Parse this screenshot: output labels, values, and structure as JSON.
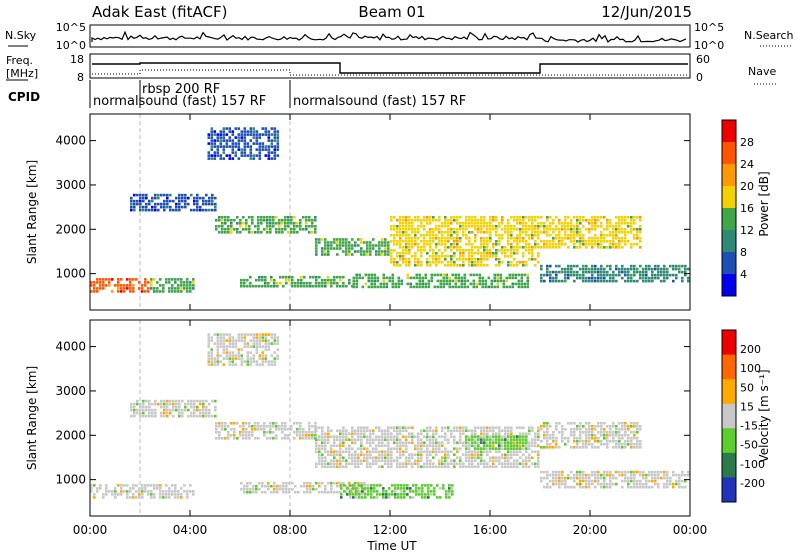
{
  "header": {
    "title_left": "Adak East (fitACF)",
    "title_center": "Beam 01",
    "title_right": "12/Jun/2015"
  },
  "noise_panel": {
    "left_label": "N.Sky",
    "right_label": "N.Search",
    "ticks": [
      "10^5",
      "10^0"
    ],
    "right_ticks": [
      "10^5",
      "10^0"
    ]
  },
  "freq_panel": {
    "left_label_line1": "Freq.",
    "left_label_line2": "[MHz]",
    "left_ticks": [
      "18",
      "8"
    ],
    "right_label": "Nave",
    "right_ticks": [
      "60",
      "0"
    ]
  },
  "cpid": {
    "label": "CPID",
    "entries": [
      {
        "text": "normalsound (fast) 157 RF",
        "start_hour": 0
      },
      {
        "text": "rbsp 200 RF",
        "start_hour": 2.0
      },
      {
        "text": "normalsound (fast) 157 RF",
        "start_hour": 8.0
      }
    ]
  },
  "colors": {
    "power": [
      "#0000ee",
      "#1f4fb5",
      "#2e8a74",
      "#3fa64a",
      "#f2d200",
      "#ff9900",
      "#ff5500",
      "#ee0000"
    ],
    "velocity": [
      "#2233bb",
      "#2a7a4a",
      "#5ccc2e",
      "#c8c8c8",
      "#ffaa00",
      "#ff6600",
      "#ee0000"
    ],
    "ground_grey": "#c0c0c0"
  },
  "chart_data": [
    {
      "type": "heatmap",
      "name": "power",
      "xlabel": "Time UT",
      "ylabel": "Slant Range [km]",
      "xlim_hours": [
        0,
        24
      ],
      "ylim": [
        180,
        4600
      ],
      "y_ticks": [
        "1000",
        "2000",
        "3000",
        "4000"
      ],
      "x_ticks": [
        "00:00",
        "04:00",
        "08:00",
        "12:00",
        "16:00",
        "20:00",
        "00:00"
      ],
      "colorbar": {
        "label": "Power [dB]",
        "ticks": [
          "28",
          "24",
          "20",
          "16",
          "12",
          "8",
          "4"
        ]
      },
      "bands": [
        {
          "t": [
            0,
            2.4
          ],
          "r": [
            600,
            900
          ],
          "level": 6
        },
        {
          "t": [
            2.4,
            4.2
          ],
          "r": [
            600,
            900
          ],
          "level": 3
        },
        {
          "t": [
            6.0,
            10.5
          ],
          "r": [
            700,
            950
          ],
          "level": 3
        },
        {
          "t": [
            10.5,
            17.5
          ],
          "r": [
            700,
            1000
          ],
          "level": 3
        },
        {
          "t": [
            1.6,
            5.0
          ],
          "r": [
            2400,
            2800
          ],
          "level": 1
        },
        {
          "t": [
            5.0,
            9.0
          ],
          "r": [
            1900,
            2300
          ],
          "level": 3
        },
        {
          "t": [
            9.0,
            12.0
          ],
          "r": [
            1450,
            1800
          ],
          "level": 3
        },
        {
          "t": [
            12.0,
            18.0
          ],
          "r": [
            1200,
            2300
          ],
          "level": 4
        },
        {
          "t": [
            18.0,
            22.0
          ],
          "r": [
            1600,
            2300
          ],
          "level": 4
        },
        {
          "t": [
            18.0,
            24.0
          ],
          "r": [
            800,
            1200
          ],
          "level": 2
        },
        {
          "t": [
            4.7,
            7.5
          ],
          "r": [
            3600,
            4300
          ],
          "level": 1
        }
      ]
    },
    {
      "type": "heatmap",
      "name": "velocity",
      "xlabel": "Time UT",
      "ylabel": "Slant Range [km]",
      "xlim_hours": [
        0,
        24
      ],
      "ylim": [
        180,
        4600
      ],
      "y_ticks": [
        "1000",
        "2000",
        "3000",
        "4000"
      ],
      "x_ticks": [
        "00:00",
        "04:00",
        "08:00",
        "12:00",
        "16:00",
        "20:00",
        "00:00"
      ],
      "colorbar": {
        "label": "Velocity [m s⁻¹]",
        "ticks": [
          "200",
          "100",
          "50",
          "15",
          "-15",
          "-50",
          "-100",
          "-200"
        ]
      },
      "bands": [
        {
          "t": [
            0,
            4.2
          ],
          "r": [
            600,
            900
          ],
          "level": 3
        },
        {
          "t": [
            6.0,
            11.0
          ],
          "r": [
            700,
            950
          ],
          "level": 3
        },
        {
          "t": [
            10.0,
            14.5
          ],
          "r": [
            600,
            900
          ],
          "level": 2
        },
        {
          "t": [
            1.6,
            5.0
          ],
          "r": [
            2400,
            2800
          ],
          "level": 3
        },
        {
          "t": [
            5.0,
            9.0
          ],
          "r": [
            1900,
            2300
          ],
          "level": 3
        },
        {
          "t": [
            9.0,
            18.0
          ],
          "r": [
            1300,
            2200
          ],
          "level": 3
        },
        {
          "t": [
            15.0,
            17.5
          ],
          "r": [
            1700,
            2000
          ],
          "level": 2
        },
        {
          "t": [
            18.0,
            22.0
          ],
          "r": [
            1700,
            2300
          ],
          "level": 3
        },
        {
          "t": [
            18.0,
            24.0
          ],
          "r": [
            800,
            1200
          ],
          "level": 3
        },
        {
          "t": [
            4.7,
            7.5
          ],
          "r": [
            3600,
            4300
          ],
          "level": 3
        }
      ]
    }
  ]
}
